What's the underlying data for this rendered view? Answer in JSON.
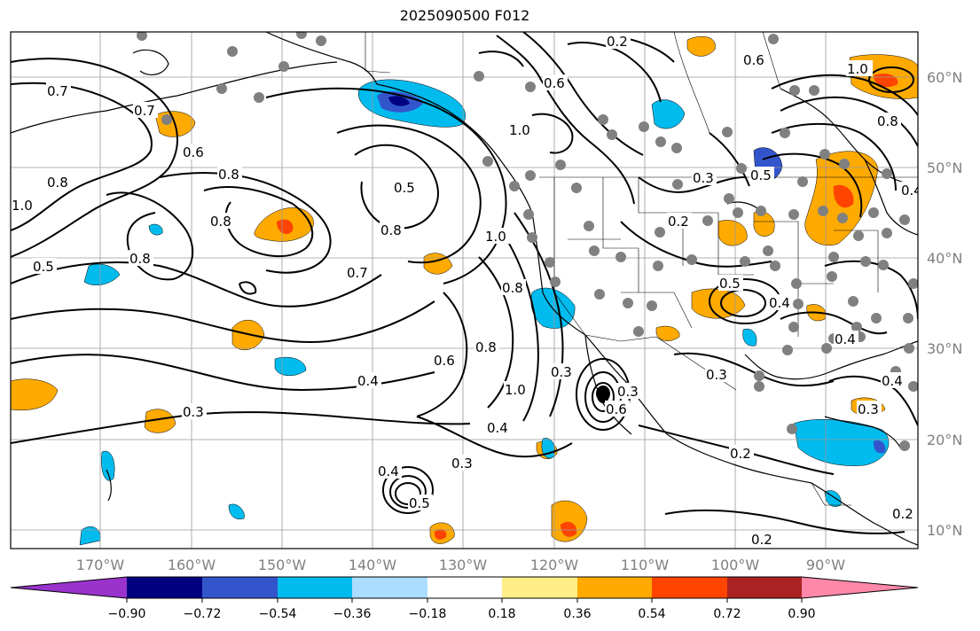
{
  "title": "2025090500 F012",
  "map": {
    "lat_labels": [
      "60°N",
      "50°N",
      "40°N",
      "30°N",
      "20°N",
      "10°N"
    ],
    "lon_labels": [
      "170°W",
      "160°W",
      "150°W",
      "140°W",
      "130°W",
      "120°W",
      "110°W",
      "100°W",
      "90°W"
    ],
    "contour_labels": [
      "0.2",
      "0.6",
      "1.0",
      "0.7",
      "0.6",
      "0.8",
      "1.0",
      "0.8",
      "0.5",
      "0.8",
      "0.5",
      "0.8",
      "0.7",
      "0.4",
      "0.3",
      "0.6",
      "0.8",
      "1.0",
      "0.4",
      "0.3",
      "0.4",
      "0.2",
      "0.3",
      "0.2",
      "0.3",
      "0.5",
      "0.4",
      "1.0",
      "0.8",
      "0.2",
      "0.3",
      "1.0",
      "0.6",
      "0.7",
      "0.8",
      "0.5",
      "0.4",
      "0.3",
      "0.4",
      "0.8",
      "0.6",
      "0.2",
      "0.3",
      "0.5",
      "0.4"
    ],
    "colors": {
      "purple": "#9933cc",
      "navy": "#000080",
      "blue": "#3355cc",
      "cyan": "#00bbee",
      "light_blue": "#aaddff",
      "white": "#ffffff",
      "light_yellow": "#ffee88",
      "orange": "#ffaa00",
      "red_orange": "#ff4400",
      "dark_red": "#aa2222",
      "pink": "#ff88aa",
      "station_dot": "#808080"
    }
  },
  "colorbar": {
    "tick_labels": [
      "−0.90",
      "−0.72",
      "−0.54",
      "−0.36",
      "−0.18",
      "0.18",
      "0.36",
      "0.54",
      "0.72",
      "0.90"
    ],
    "colors": [
      "#9933cc",
      "#000080",
      "#3355cc",
      "#00bbee",
      "#aaddff",
      "#ffffff",
      "#ffee88",
      "#ffaa00",
      "#ff4400",
      "#aa2222",
      "#ff88aa"
    ]
  }
}
